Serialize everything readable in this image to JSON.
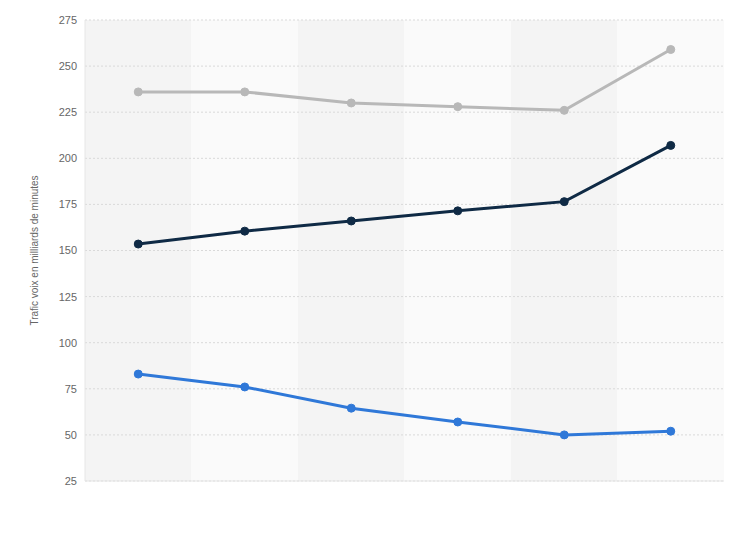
{
  "chart_data": {
    "type": "line",
    "y_label": "Trafic voix en milliards de minutes",
    "categories": [
      null,
      null,
      null,
      null,
      null,
      null
    ],
    "series": [
      {
        "color": "#b8b8b8",
        "values": [
          236,
          236,
          230,
          228,
          226,
          259
        ]
      },
      {
        "color": "#0f2a45",
        "values": [
          153.5,
          160.5,
          166,
          171.5,
          176.5,
          207
        ]
      },
      {
        "color": "#2f78d8",
        "values": [
          83,
          76,
          64.5,
          57,
          50,
          52
        ]
      }
    ],
    "ylim": [
      25,
      275
    ],
    "yticks": [
      25,
      50,
      75,
      100,
      125,
      150,
      175,
      200,
      225,
      250,
      275
    ],
    "grid": true,
    "tick_labels": "y",
    "marker": "circle"
  }
}
